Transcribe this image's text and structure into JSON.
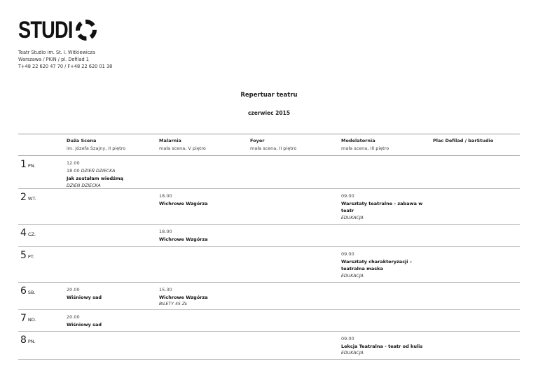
{
  "logo": {
    "text": "STUDI"
  },
  "address": [
    "Teatr Studio im. St. I. Witkiewicza",
    "Warszawa / PKiN / pl. Defilad 1",
    "T+48 22 620 47 70 / F+48 22 620 01 38"
  ],
  "title": "Repertuar teatru",
  "month": "czerwiec 2015",
  "venues": [
    {
      "name": "Duża Scena",
      "sub": "im. Józefa Szajny, II piętro"
    },
    {
      "name": "Malarnia",
      "sub": "mała scena, V piętro"
    },
    {
      "name": "Foyer",
      "sub": "mała scena, II piętro"
    },
    {
      "name": "Modelatornia",
      "sub": "mała scena, III piętro"
    },
    {
      "name": "Plac Defilad / barStudio",
      "sub": ""
    }
  ],
  "rows": [
    {
      "day": "1",
      "dow": "PN.",
      "cells": [
        [
          {
            "s": "t",
            "v": "12.00"
          },
          {
            "s": "t",
            "v": "18.00",
            "it": "DZIEŃ DZIECKA"
          },
          {
            "s": "b",
            "v": "Jak zostałam wiedźmą"
          },
          {
            "s": "i",
            "v": "DZIEŃ DZIECKA"
          }
        ],
        [],
        [],
        [],
        []
      ]
    },
    {
      "day": "2",
      "dow": "WT.",
      "cells": [
        [],
        [
          {
            "s": "t",
            "v": "18.00"
          },
          {
            "s": "b",
            "v": "Wichrowe Wzgórza"
          }
        ],
        [],
        [
          {
            "s": "t",
            "v": "09.00"
          },
          {
            "s": "b",
            "v": "Warsztaty teatralne - zabawa w teatr"
          },
          {
            "s": "i",
            "v": "EDUKACJA"
          }
        ],
        []
      ]
    },
    {
      "day": "4",
      "dow": "CZ.",
      "cells": [
        [],
        [
          {
            "s": "t",
            "v": "18.00"
          },
          {
            "s": "b",
            "v": "Wichrowe Wzgórza"
          }
        ],
        [],
        [],
        []
      ]
    },
    {
      "day": "5",
      "dow": "PT.",
      "cells": [
        [],
        [],
        [],
        [
          {
            "s": "t",
            "v": "09.00"
          },
          {
            "s": "b",
            "v": "Warsztaty charakteryzacji – teatralna maska"
          },
          {
            "s": "i",
            "v": "EDUKACJA"
          }
        ],
        []
      ]
    },
    {
      "day": "6",
      "dow": "SB.",
      "cells": [
        [
          {
            "s": "t",
            "v": "20.00"
          },
          {
            "s": "b",
            "v": "Wiśniowy sad"
          }
        ],
        [
          {
            "s": "t",
            "v": "15.30"
          },
          {
            "s": "b",
            "v": "Wichrowe Wzgórza"
          },
          {
            "s": "i",
            "v": "BILETY 45 ZŁ"
          }
        ],
        [],
        [],
        []
      ]
    },
    {
      "day": "7",
      "dow": "ND.",
      "cells": [
        [
          {
            "s": "t",
            "v": "20.00"
          },
          {
            "s": "b",
            "v": "Wiśniowy sad"
          }
        ],
        [],
        [],
        [],
        []
      ]
    },
    {
      "day": "8",
      "dow": "PN.",
      "cells": [
        [],
        [],
        [],
        [
          {
            "s": "t",
            "v": "09.00"
          },
          {
            "s": "b",
            "v": "Lekcja Teatralna - teatr od kulis"
          },
          {
            "s": "i",
            "v": "EDUKACJA"
          }
        ],
        []
      ]
    }
  ]
}
